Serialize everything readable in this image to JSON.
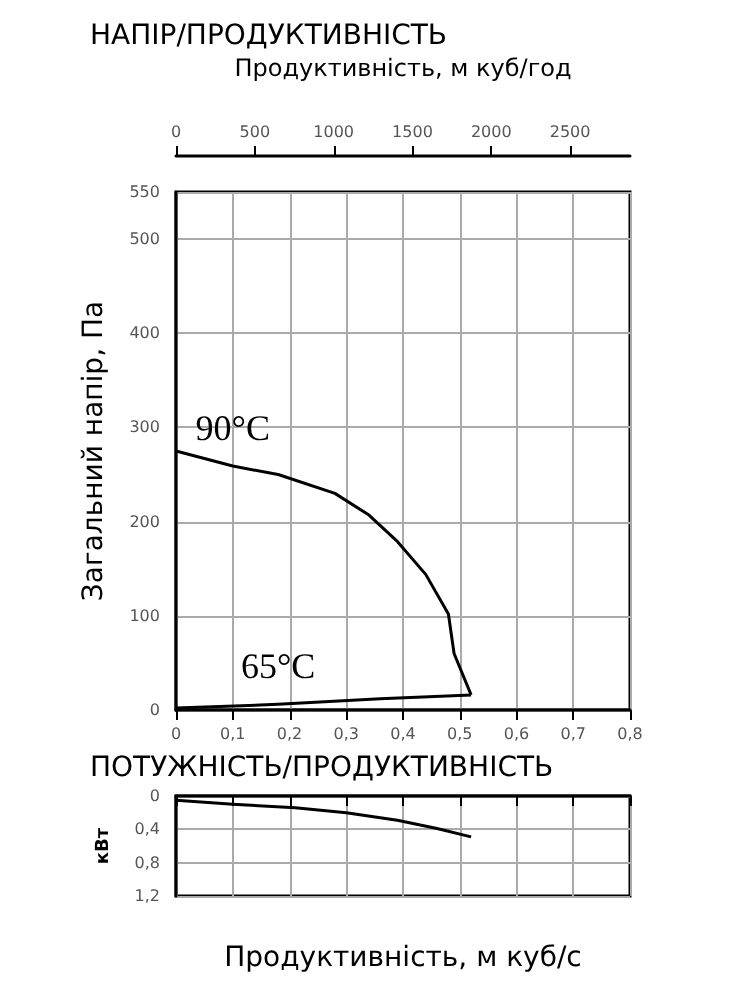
{
  "chart_data": [
    {
      "type": "line",
      "title": "НАПІР/ПРОДУКТИВНІСТЬ",
      "x2label": "Продуктивність, м куб/год",
      "ylabel": "Загальний напір, Па",
      "xlim": [
        0,
        0.8
      ],
      "xticks": [
        0,
        {
          "value": 0.1,
          "label": "0,1"
        },
        {
          "value": 0.2,
          "label": "0,2"
        },
        {
          "value": 0.3,
          "label": "0,3"
        },
        {
          "value": 0.4,
          "label": "0,4"
        },
        {
          "value": 0.5,
          "label": "0,5"
        },
        {
          "value": 0.6,
          "label": "0,6"
        },
        {
          "value": 0.7,
          "label": "0,7"
        },
        {
          "value": 0.8,
          "label": "0,8"
        }
      ],
      "x2lim": [
        0,
        2880
      ],
      "x2ticks": [
        0,
        500,
        1000,
        1500,
        2000,
        2500
      ],
      "ylim": [
        0,
        550
      ],
      "yticks": [
        0,
        100,
        200,
        300,
        400,
        500,
        550
      ],
      "grid": true,
      "marker": "none",
      "series": [
        {
          "name": "90°C",
          "color": "#000000",
          "x": [
            0,
            0.1,
            0.18,
            0.28,
            0.34,
            0.39,
            0.44,
            0.48,
            0.49,
            0.52
          ],
          "values": [
            275,
            259,
            250,
            230,
            207,
            179,
            144,
            102,
            60,
            16
          ]
        },
        {
          "name": "65°C",
          "color": "#000000",
          "x": [
            0,
            0.18,
            0.36,
            0.52
          ],
          "values": [
            2,
            6,
            12,
            16
          ]
        }
      ]
    },
    {
      "type": "line",
      "title": "ПОТУЖНІСТЬ/ПРОДУКТИВНІСТЬ",
      "xlabel": "Продуктивність, м куб/с",
      "ylabel": "кВт",
      "xlim": [
        0,
        0.8
      ],
      "xticks": [
        0,
        0.1,
        0.2,
        0.3,
        0.4,
        0.5,
        0.6,
        0.7,
        0.8
      ],
      "ylim": [
        1.2,
        0
      ],
      "yticks": [
        0,
        {
          "value": 0.4,
          "label": "0,4"
        },
        {
          "value": 0.8,
          "label": "0,8"
        },
        {
          "value": 1.2,
          "label": "1,2"
        }
      ],
      "grid": true,
      "marker": "none",
      "tick_labels": "y",
      "series": [
        {
          "color": "#000000",
          "x": [
            0,
            0.1,
            0.21,
            0.3,
            0.39,
            0.46,
            0.52
          ],
          "values": [
            0.05,
            0.1,
            0.14,
            0.2,
            0.29,
            0.39,
            0.49
          ]
        }
      ]
    }
  ]
}
